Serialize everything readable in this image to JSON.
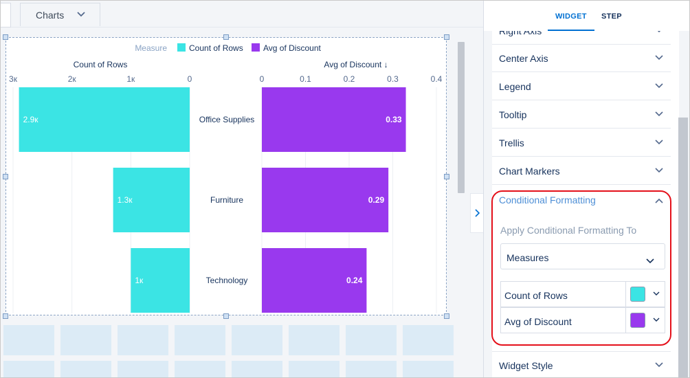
{
  "header": {
    "dropdown_label": "Charts"
  },
  "panel": {
    "tabs": [
      {
        "label": "WIDGET",
        "active": true
      },
      {
        "label": "STEP",
        "active": false
      }
    ],
    "sections": [
      {
        "label": "Right Axis"
      },
      {
        "label": "Center Axis"
      },
      {
        "label": "Legend"
      },
      {
        "label": "Tooltip"
      },
      {
        "label": "Trellis"
      },
      {
        "label": "Chart Markers"
      }
    ],
    "conditional_formatting": {
      "title": "Conditional Formatting",
      "apply_label": "Apply Conditional Formatting To",
      "select_value": "Measures",
      "measures": [
        {
          "label": "Count of Rows",
          "color": "#3be4e4"
        },
        {
          "label": "Avg of Discount",
          "color": "#9939ee"
        }
      ]
    },
    "widget_style": {
      "label": "Widget Style"
    }
  },
  "colors": {
    "accent": "#0070d2",
    "highlight": "#e4101a",
    "count_color": "#3be4e4",
    "discount_color": "#9939ee"
  },
  "chart_data": {
    "type": "bar",
    "legend": {
      "title": "Measure",
      "entries": [
        {
          "name": "Count of Rows",
          "color": "#3be4e4"
        },
        {
          "name": "Avg of Discount",
          "color": "#9939ee"
        }
      ],
      "placement": "top"
    },
    "categories": [
      "Office Supplies",
      "Furniture",
      "Technology"
    ],
    "series": [
      {
        "name": "Count of Rows",
        "values": [
          2900,
          1300,
          1000
        ],
        "labels": [
          "2.9к",
          "1.3к",
          "1к"
        ],
        "ticks": [
          "3к",
          "2к",
          "1к",
          "0"
        ],
        "xlim": [
          0,
          3000
        ],
        "axis_label": "Count of Rows",
        "orientation": "reversed"
      },
      {
        "name": "Avg of Discount",
        "values": [
          0.33,
          0.29,
          0.24
        ],
        "labels": [
          "0.33",
          "0.29",
          "0.24"
        ],
        "ticks": [
          "0",
          "0.1",
          "0.2",
          "0.3",
          "0.4"
        ],
        "xlim": [
          0,
          0.4
        ],
        "axis_label": "Avg of Discount ↓",
        "orientation": "normal"
      }
    ],
    "grid": true
  }
}
